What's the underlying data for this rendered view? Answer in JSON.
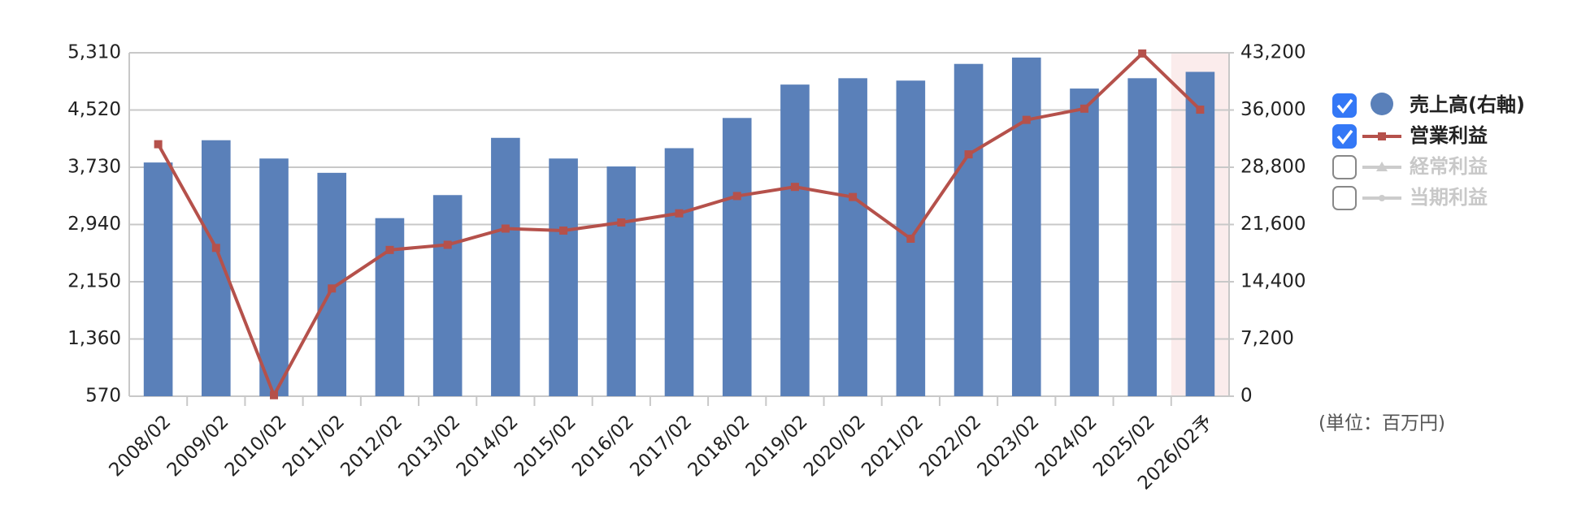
{
  "chart_data": {
    "type": "bar_line",
    "categories": [
      "2008/02",
      "2009/02",
      "2010/02",
      "2011/02",
      "2012/02",
      "2013/02",
      "2014/02",
      "2015/02",
      "2016/02",
      "2017/02",
      "2018/02",
      "2019/02",
      "2020/02",
      "2021/02",
      "2022/02",
      "2023/02",
      "2024/02",
      "2025/02",
      "2026/02予"
    ],
    "series": [
      {
        "name": "売上高(右軸)",
        "type": "bar",
        "axis": "y2",
        "color": "#5a80b9",
        "checked": true,
        "values": [
          29400,
          32200,
          29900,
          28100,
          22400,
          25300,
          32500,
          29900,
          28900,
          31200,
          35000,
          39200,
          40000,
          39700,
          41800,
          42600,
          38700,
          40000,
          40800
        ]
      },
      {
        "name": "営業利益",
        "type": "line",
        "axis": "y",
        "color": "#b5514b",
        "checked": true,
        "values": [
          4048,
          2617,
          584,
          2057,
          2589,
          2660,
          2884,
          2856,
          2968,
          3094,
          3333,
          3459,
          3319,
          2744,
          3908,
          4384,
          4539,
          5300,
          4525
        ]
      }
    ],
    "hidden_series": [
      {
        "name": "経常利益",
        "checked": false
      },
      {
        "name": "当期利益",
        "checked": false
      }
    ],
    "ylim": [
      570,
      5310
    ],
    "yticks": [
      570,
      {
        "value": 1360,
        "label": "1,360"
      },
      {
        "value": 2150,
        "label": "2,150"
      },
      {
        "value": 2940,
        "label": "2,940"
      },
      {
        "value": 3730,
        "label": "3,730"
      },
      {
        "value": 4520,
        "label": "4,520"
      },
      {
        "value": 5310,
        "label": "5,310"
      }
    ],
    "y2lim": [
      0,
      43200
    ],
    "y2ticks": [
      0,
      {
        "value": 7200,
        "label": "7,200"
      },
      {
        "value": 14400,
        "label": "14,400"
      },
      {
        "value": 21600,
        "label": "21,600"
      },
      {
        "value": 28800,
        "label": "28,800"
      },
      {
        "value": 36000,
        "label": "36,000"
      },
      {
        "value": 43200,
        "label": "43,200"
      }
    ],
    "unit_label": "(単位：百万円)",
    "highlight_category": "2026/02予",
    "highlight_color": "#fbecec",
    "grid": true
  }
}
